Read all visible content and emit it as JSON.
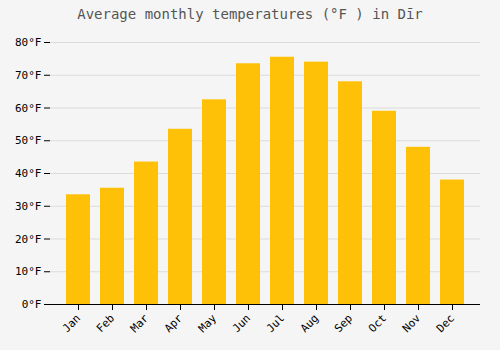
{
  "chart_data": {
    "type": "bar",
    "title": "Average monthly temperatures (°F ) in Dīr",
    "categories": [
      "Jan",
      "Feb",
      "Mar",
      "Apr",
      "May",
      "Jun",
      "Jul",
      "Aug",
      "Sep",
      "Oct",
      "Nov",
      "Dec"
    ],
    "values": [
      33.5,
      35.5,
      43.5,
      53.5,
      62.5,
      73.5,
      75.5,
      74.0,
      68.0,
      59.0,
      48.0,
      38.0
    ],
    "color": "#FFC107",
    "ylim": [
      0,
      80
    ],
    "yticks": [
      {
        "value": 0,
        "label": "0°F"
      },
      {
        "value": 10,
        "label": "10°F"
      },
      {
        "value": 20,
        "label": "20°F"
      },
      {
        "value": 30,
        "label": "30°F"
      },
      {
        "value": 40,
        "label": "40°F"
      },
      {
        "value": 50,
        "label": "50°F"
      },
      {
        "value": 60,
        "label": "60°F"
      },
      {
        "value": 70,
        "label": "70°F"
      },
      {
        "value": 80,
        "label": "80°F"
      }
    ],
    "grid": true
  }
}
